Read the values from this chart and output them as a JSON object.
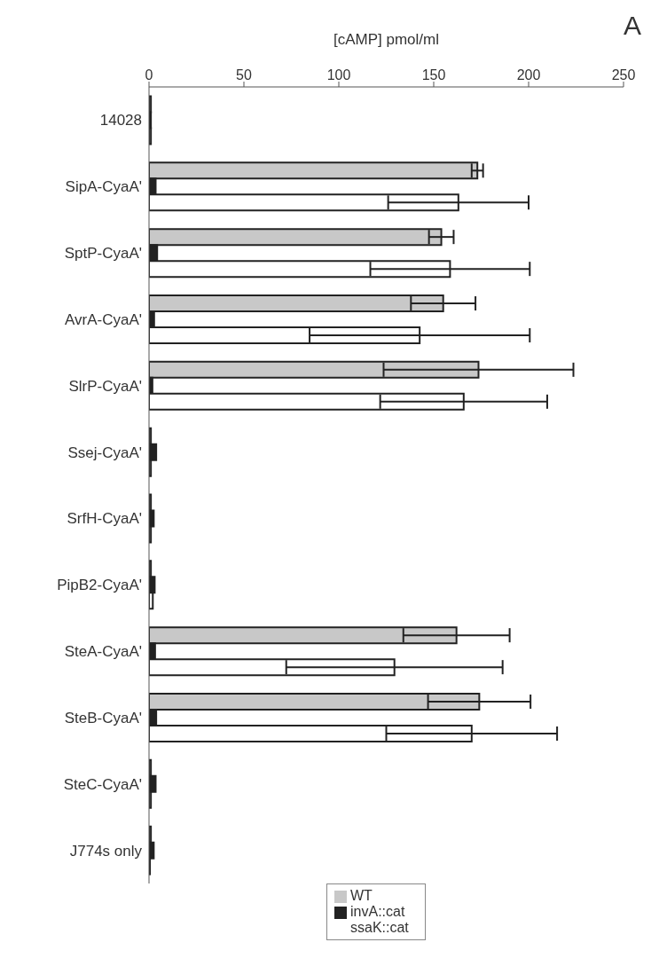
{
  "chart_data": {
    "type": "bar",
    "orientation": "horizontal",
    "xlabel": "[cAMP] pmol/ml",
    "annotations": [
      "A"
    ],
    "categories": [
      "14028",
      "SipA-CyaA'",
      "SptP-CyaA'",
      "AvrA-CyaA'",
      "SlrP-CyaA'",
      "Ssej-CyaA'",
      "SrfH-CyaA'",
      "PipB2-CyaA'",
      "SteA-CyaA'",
      "SteB-CyaA'",
      "SteC-CyaA'",
      "J774s only"
    ],
    "series": [
      {
        "name": "WT",
        "color": "#c8c8c8",
        "values": [
          1,
          173,
          154,
          155,
          173.6,
          1,
          1,
          1,
          162,
          174,
          1,
          1
        ],
        "errors": [
          null,
          3,
          6.5,
          17,
          50,
          null,
          null,
          null,
          28,
          27,
          null,
          null
        ]
      },
      {
        "name": "invA::cat",
        "color": "#222222",
        "values": [
          1,
          3.5,
          4.3,
          2.7,
          1.8,
          3.8,
          2.5,
          3,
          3.2,
          3.8,
          3.5,
          2.5
        ]
      },
      {
        "name": "ssaK::cat",
        "color": "#ffffff",
        "values": [
          1,
          163,
          158.6,
          142.6,
          165.8,
          1,
          1,
          2,
          129.3,
          170,
          1,
          0.5
        ],
        "errors": [
          null,
          37,
          42,
          58,
          44,
          null,
          null,
          null,
          57,
          45,
          null,
          null
        ]
      }
    ],
    "xlim": [
      0,
      250
    ],
    "xticks": [
      0,
      50,
      100,
      150,
      200,
      250
    ],
    "legend": "bottom",
    "grid": false
  }
}
